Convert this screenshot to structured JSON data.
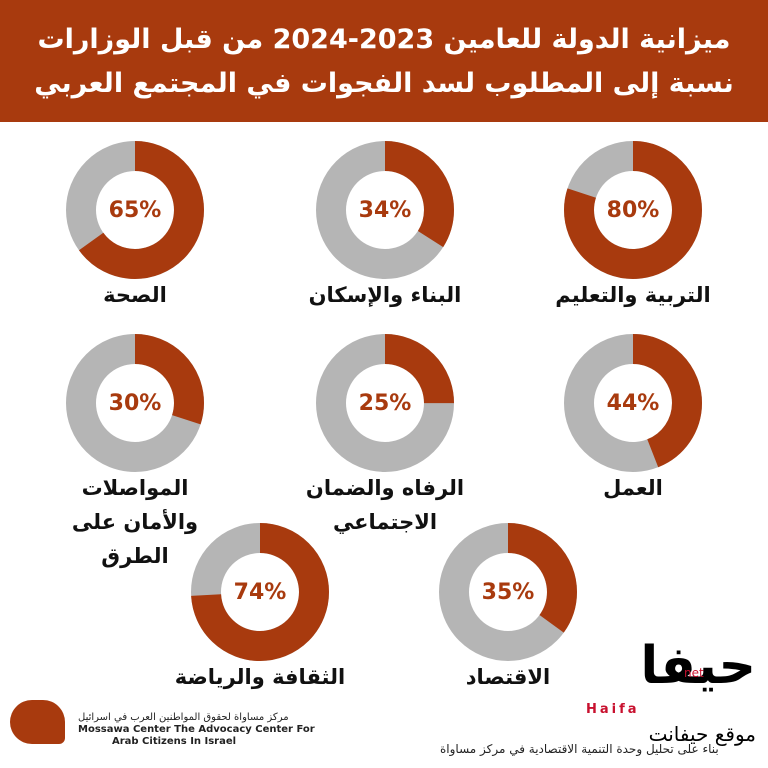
{
  "header": {
    "title": "ميزانية الدولة للعامين 2023-2024 من قبل الوزارات نسبة إلى المطلوب لسد الفجوات في المجتمع العربي"
  },
  "chart_data": [
    {
      "type": "donut",
      "title": "التربية والتعليم",
      "values": [
        80
      ],
      "value_labels": [
        "80%"
      ],
      "color": "#a83a0e",
      "rest_color": "#b5b5b5"
    },
    {
      "type": "donut",
      "title": "البناء والإسكان",
      "values": [
        34
      ],
      "value_labels": [
        "34%"
      ],
      "color": "#a83a0e",
      "rest_color": "#b5b5b5"
    },
    {
      "type": "donut",
      "title": "الصحة",
      "values": [
        65
      ],
      "value_labels": [
        "65%"
      ],
      "color": "#a83a0e",
      "rest_color": "#b5b5b5"
    },
    {
      "type": "donut",
      "title": "العمل",
      "values": [
        44
      ],
      "value_labels": [
        "44%"
      ],
      "color": "#a83a0e",
      "rest_color": "#b5b5b5"
    },
    {
      "type": "donut",
      "title": "الرفاه والضمان الاجتماعي",
      "values": [
        25
      ],
      "value_labels": [
        "25%"
      ],
      "color": "#a83a0e",
      "rest_color": "#b5b5b5"
    },
    {
      "type": "donut",
      "title": "المواصلات والأمان على الطرق",
      "values": [
        30
      ],
      "value_labels": [
        "30%"
      ],
      "color": "#a83a0e",
      "rest_color": "#b5b5b5"
    },
    {
      "type": "donut",
      "title": "الاقتصاد",
      "values": [
        35
      ],
      "value_labels": [
        "35%"
      ],
      "color": "#a83a0e",
      "rest_color": "#b5b5b5"
    },
    {
      "type": "donut",
      "title": "الثقافة والرياضة",
      "values": [
        74
      ],
      "value_labels": [
        "74%"
      ],
      "color": "#a83a0e",
      "rest_color": "#b5b5b5"
    }
  ],
  "footer": {
    "org_ar": "مركز مساواة لحقوق المواطنين العرب في اسرائيل",
    "org_en_1": "Mossawa Center The Advocacy Center For",
    "org_en_2": "Arab Citizens In Israel",
    "source": "بناء على تحليل وحدة التنمية الاقتصادية في مركز مساواة"
  },
  "watermark": {
    "logo": "حيفا",
    "latin": "Haifa",
    "net": "net",
    "site": "موقع حيفانت"
  }
}
